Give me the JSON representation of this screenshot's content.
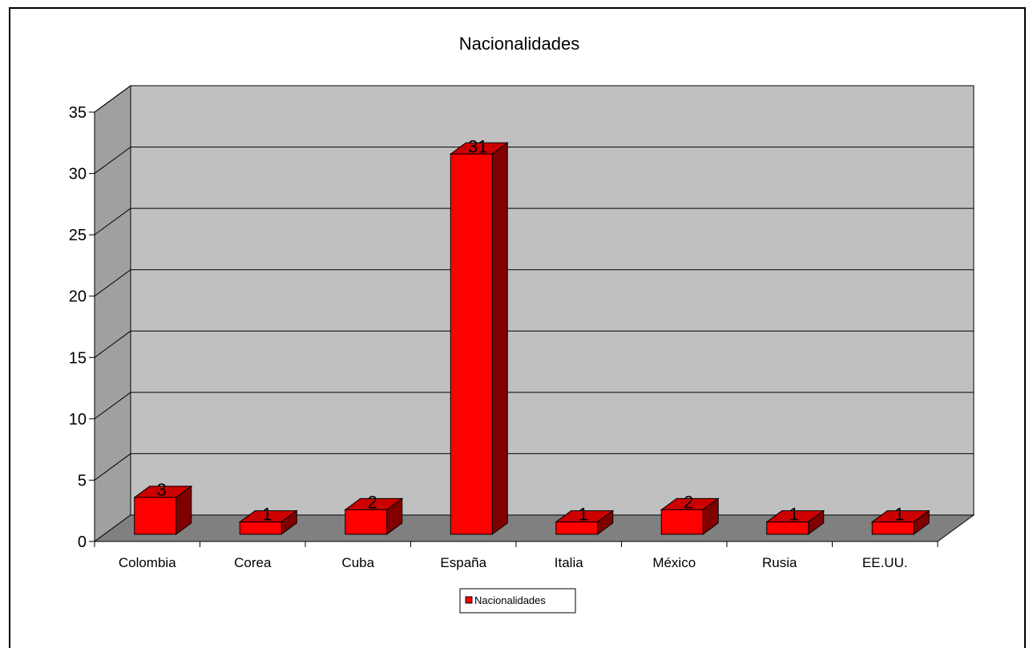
{
  "chart_data": {
    "type": "bar",
    "title": "Nacionalidades",
    "categories": [
      "Colombia",
      "Corea",
      "Cuba",
      "España",
      "Italia",
      "México",
      "Rusia",
      "EE.UU."
    ],
    "series": [
      {
        "name": "Nacionalidades",
        "values": [
          3,
          1,
          2,
          31,
          1,
          2,
          1,
          1
        ]
      }
    ],
    "ylim": [
      0,
      35
    ],
    "yticks": [
      "0",
      "5",
      "10",
      "15",
      "20",
      "25",
      "30",
      "35"
    ],
    "grid": true,
    "legend_position": "bottom",
    "three_d": true,
    "colors": {
      "bar_front": "#ff0000",
      "bar_top": "#cc0000",
      "bar_side": "#800000",
      "back_wall": "#c0c0c0",
      "side_wall": "#a0a0a0",
      "floor": "#808080"
    }
  }
}
